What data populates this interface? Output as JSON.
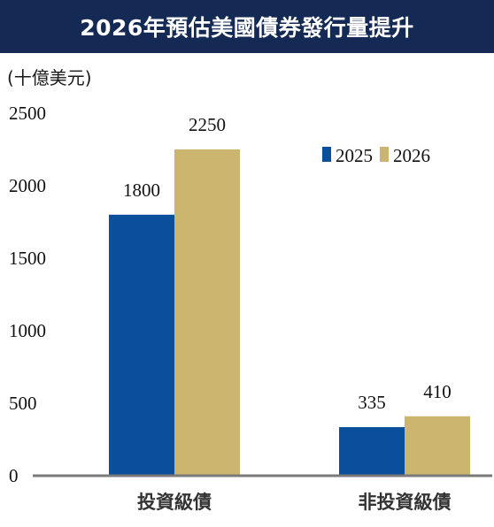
{
  "title": "2026年預估美國債券發行量提升",
  "unit_label": "(十億美元)",
  "colors": {
    "title_bg": "#142a55",
    "series_2025": "#0a4f9c",
    "series_2026": "#cbb56f",
    "axis": "#7a7a7a"
  },
  "chart_data": {
    "type": "bar",
    "categories": [
      "投資級債",
      "非投資級債"
    ],
    "series": [
      {
        "name": "2025",
        "values": [
          1800,
          335
        ],
        "color": "#0a4f9c"
      },
      {
        "name": "2026",
        "values": [
          2250,
          410
        ],
        "color": "#cbb56f"
      }
    ],
    "yticks": [
      0,
      500,
      1000,
      1500,
      2000,
      2500
    ],
    "ylim": [
      0,
      2500
    ],
    "grid": false,
    "legend_position": "top-right",
    "title": "2026年預估美國債券發行量提升",
    "ylabel": "(十億美元)",
    "xlabel": ""
  }
}
